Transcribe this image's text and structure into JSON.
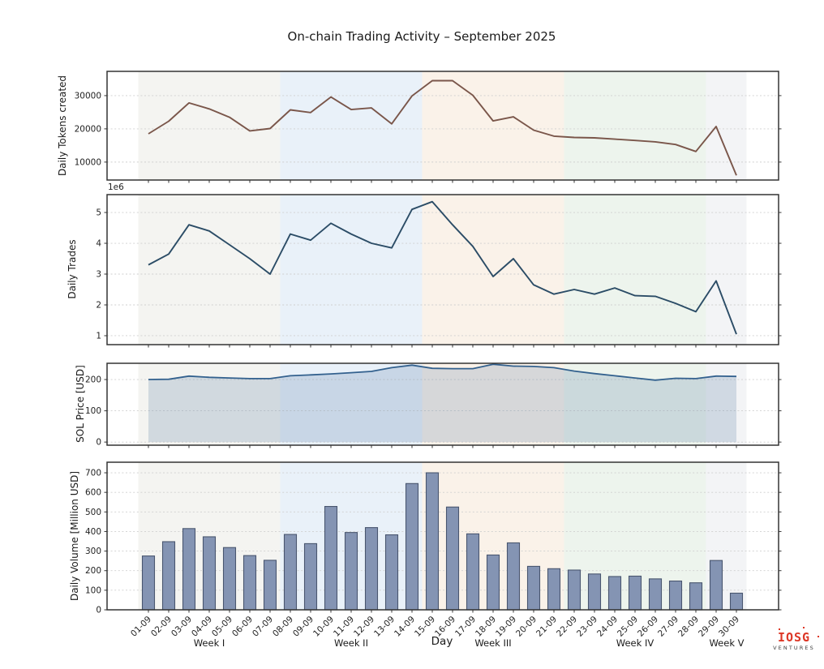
{
  "title": "On-chain Trading Activity – September 2025",
  "xlabel": "Day",
  "days": [
    "01-09",
    "02-09",
    "03-09",
    "04-09",
    "05-09",
    "06-09",
    "07-09",
    "08-09",
    "09-09",
    "10-09",
    "11-09",
    "12-09",
    "13-09",
    "14-09",
    "15-09",
    "16-09",
    "17-09",
    "18-09",
    "19-09",
    "20-09",
    "21-09",
    "22-09",
    "23-09",
    "24-09",
    "25-09",
    "26-09",
    "27-09",
    "28-09",
    "29-09",
    "30-09"
  ],
  "week_bands": [
    {
      "label": "Week I",
      "color": "#f4f4f1",
      "start_day": 0.5,
      "end_day": 7.5
    },
    {
      "label": "Week II",
      "color": "#e9f1f9",
      "start_day": 7.5,
      "end_day": 14.5
    },
    {
      "label": "Week III",
      "color": "#faf2e9",
      "start_day": 14.5,
      "end_day": 21.5
    },
    {
      "label": "Week IV",
      "color": "#edf4ed",
      "start_day": 21.5,
      "end_day": 28.5
    },
    {
      "label": "Week V",
      "color": "#f3f4f6",
      "start_day": 28.5,
      "end_day": 30.5
    }
  ],
  "chart_data": [
    {
      "type": "line",
      "ylabel": "Daily Tokens created",
      "color": "#7a564a",
      "yticks": [
        10000,
        20000,
        30000
      ],
      "ylim": [
        4600,
        37300
      ],
      "grid": true,
      "values": [
        18500,
        22300,
        27800,
        26000,
        23500,
        19400,
        20100,
        25700,
        24900,
        29600,
        25800,
        26300,
        21500,
        29900,
        34500,
        34500,
        30100,
        22400,
        23600,
        19600,
        17800,
        17400,
        17300,
        16900,
        16500,
        16100,
        15300,
        13200,
        20700,
        6000
      ]
    },
    {
      "type": "line",
      "ylabel": "Daily Trades",
      "offset_label": "1e6",
      "color": "#2b4c66",
      "yticks": [
        1,
        2,
        3,
        4,
        5
      ],
      "ylim": [
        0.71,
        5.58
      ],
      "grid": true,
      "values": [
        3.3,
        3.65,
        4.6,
        4.4,
        3.95,
        3.5,
        3.0,
        4.3,
        4.1,
        4.65,
        4.3,
        4.0,
        3.85,
        5.1,
        5.35,
        4.6,
        3.9,
        2.92,
        3.5,
        2.65,
        2.35,
        2.5,
        2.35,
        2.55,
        2.3,
        2.28,
        2.05,
        1.78,
        2.78,
        1.05
      ]
    },
    {
      "type": "area",
      "ylabel": "SOL Price [USD]",
      "color": "#33618e",
      "fill_opacity": 0.18,
      "yticks": [
        0,
        100,
        200
      ],
      "ylim": [
        -10,
        252
      ],
      "grid": true,
      "values": [
        200,
        201,
        211,
        207,
        205,
        203,
        203,
        212,
        215,
        218,
        222,
        226,
        238,
        246,
        236,
        235,
        235,
        249,
        243,
        242,
        238,
        227,
        219,
        212,
        205,
        198,
        204,
        203,
        211,
        210
      ]
    },
    {
      "type": "bar",
      "ylabel": "Daily Volume [Million USD]",
      "color": "#8494b3",
      "edge_color": "#49566f",
      "yticks": [
        0,
        100,
        200,
        300,
        400,
        500,
        600,
        700
      ],
      "ylim": [
        0,
        754
      ],
      "grid": true,
      "show_x_labels": true,
      "x_tick_rotation": 45,
      "values": [
        275,
        348,
        415,
        373,
        318,
        277,
        253,
        385,
        338,
        528,
        395,
        420,
        383,
        645,
        700,
        525,
        388,
        280,
        342,
        222,
        210,
        203,
        183,
        170,
        172,
        158,
        147,
        138,
        252,
        85
      ]
    }
  ],
  "logo": {
    "brand": "IOSG",
    "sub": "VENTURES",
    "color": "#dd3726"
  },
  "palette": {
    "grid": "#cfcfcf",
    "spine": "#333333",
    "tick_text": "#222222"
  }
}
